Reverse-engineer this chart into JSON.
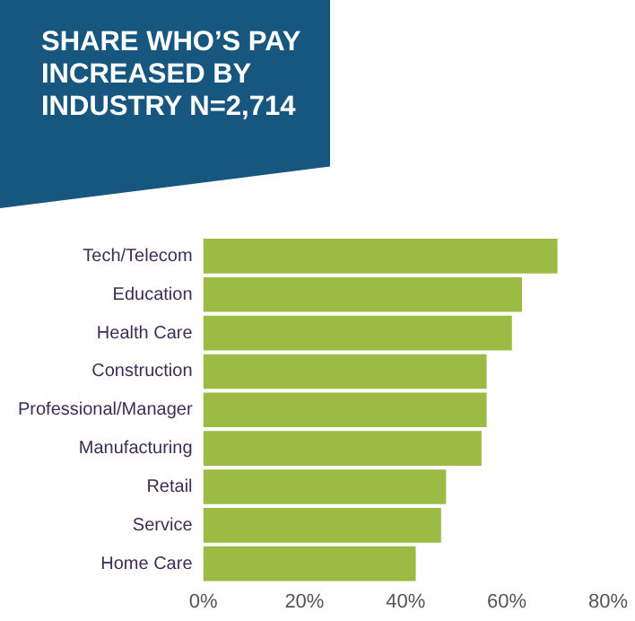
{
  "chart_data": {
    "type": "bar",
    "orientation": "horizontal",
    "title": "SHARE WHO’S PAY INCREASED BY INDUSTRY N=2,714",
    "categories": [
      "Tech/Telecom",
      "Education",
      "Health Care",
      "Construction",
      "Professional/Manager",
      "Manufacturing",
      "Retail",
      "Service",
      "Home Care"
    ],
    "values": [
      70,
      63,
      61,
      56,
      56,
      55,
      48,
      47,
      42
    ],
    "color": "#9bbb45",
    "xlim": [
      0,
      80
    ],
    "xticks": [
      {
        "value": 0,
        "label": "0%"
      },
      {
        "value": 20,
        "label": "20%"
      },
      {
        "value": 40,
        "label": "40%"
      },
      {
        "value": 60,
        "label": "60%"
      },
      {
        "value": 80,
        "label": "80%"
      }
    ],
    "grid": false
  }
}
